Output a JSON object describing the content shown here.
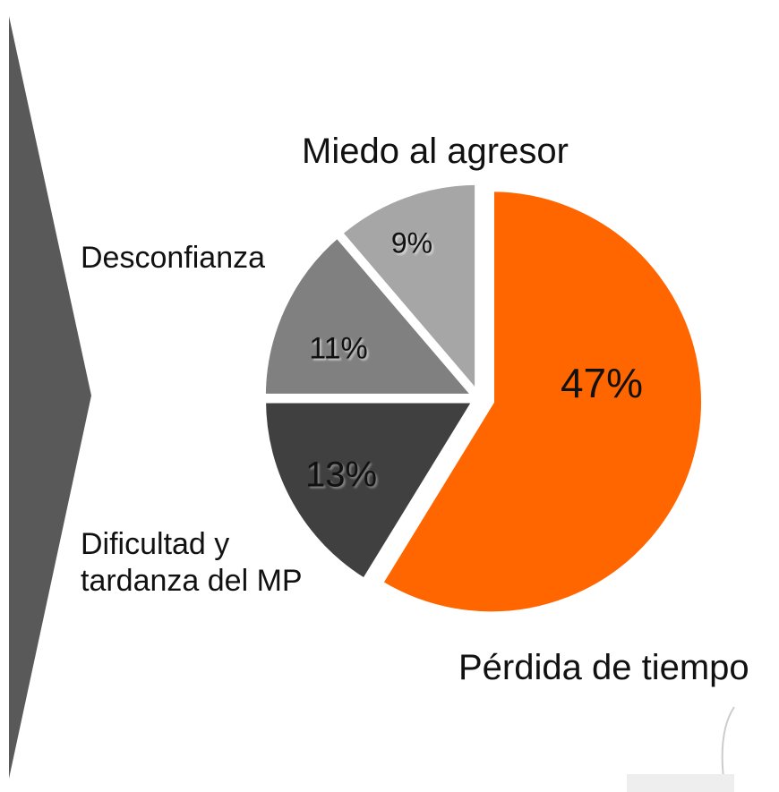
{
  "chart_data": {
    "type": "pie",
    "categories": [
      "Pérdida de tiempo",
      "Dificultad y\ntardanza del MP",
      "Desconfianza",
      "Miedo al agresor"
    ],
    "values": [
      47,
      13,
      11,
      9
    ],
    "value_labels": [
      "47%",
      "13%",
      "11%",
      "9%"
    ],
    "colors": [
      "#ff6600",
      "#404040",
      "#808080",
      "#a6a6a6"
    ]
  }
}
